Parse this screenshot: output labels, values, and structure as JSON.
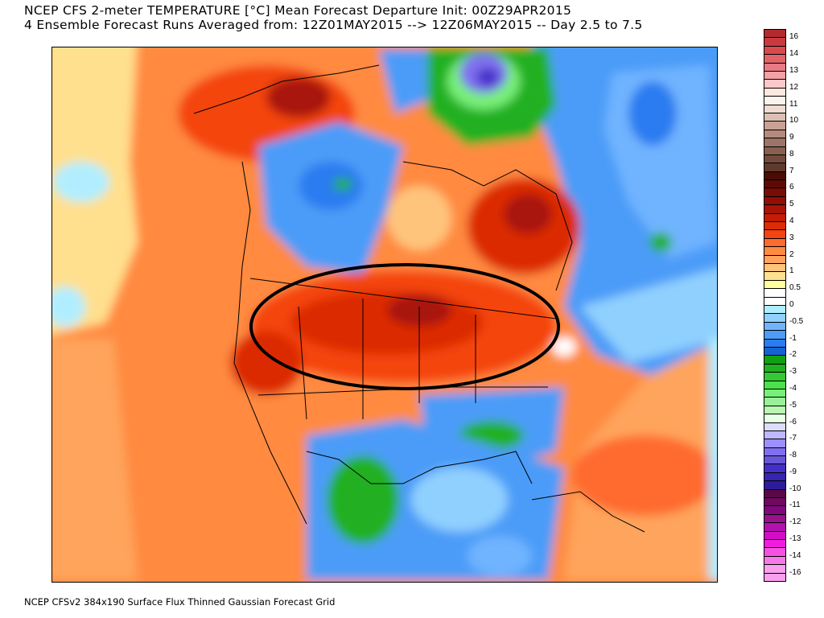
{
  "header": {
    "title_line1": "NCEP CFS 2-meter TEMPERATURE [°C] Mean Forecast Departure Init: 00Z29APR2015",
    "title_line2": "4 Ensemble Forecast Runs Averaged from: 12Z01MAY2015 --> 12Z06MAY2015 -- Day 2.5 to 7.5"
  },
  "footer": "NCEP CFSv2 384x190 Surface Flux Thinned Gaussian Forecast Grid",
  "colorbar": {
    "labels": [
      "16",
      "14",
      "13",
      "12",
      "11",
      "10",
      "9",
      "8",
      "7",
      "6",
      "5",
      "4",
      "3",
      "2",
      "1",
      "0.5",
      "0",
      "-0.5",
      "-1",
      "-2",
      "-3",
      "-4",
      "-5",
      "-6",
      "-7",
      "-8",
      "-9",
      "-10",
      "-11",
      "-12",
      "-13",
      "-14",
      "-16"
    ],
    "colors": [
      "#b22a2e",
      "#c83a3e",
      "#d84a4e",
      "#e06468",
      "#e87c84",
      "#f4a0a4",
      "#ffc8c8",
      "#fde8e0",
      "#fcf4ec",
      "#eedcd2",
      "#dcc0b4",
      "#c8a294",
      "#b48a7e",
      "#9c7468",
      "#88604f",
      "#744a3e",
      "#5e3a2e",
      "#4a0c04",
      "#5e0a04",
      "#780c06",
      "#900e06",
      "#a81408",
      "#c41c06",
      "#dc2c06",
      "#f44410",
      "#ff6a2e",
      "#ff8a40",
      "#ffa45c",
      "#ffc47c",
      "#ffe08e",
      "#ffff9e",
      "#ffffff",
      "#ffffff",
      "#b0eeff",
      "#90d0ff",
      "#70b4ff",
      "#4c9cf8",
      "#2a7cf0",
      "#1464d0",
      "#10a010",
      "#20b020",
      "#34c834",
      "#4ce04c",
      "#78f078",
      "#98f098",
      "#b8f8b0",
      "#e8ffe8",
      "#dcdcff",
      "#c0b8ff",
      "#9c90ff",
      "#8070f0",
      "#6858d8",
      "#4430c8",
      "#3824b0",
      "#2c1c9c",
      "#5a0848",
      "#700860",
      "#80087c",
      "#9a1090",
      "#b410b0",
      "#d40cc8",
      "#f01ce0",
      "#f850e0",
      "#f878e8",
      "#f8a0ec",
      "#f8a0ec"
    ]
  }
}
